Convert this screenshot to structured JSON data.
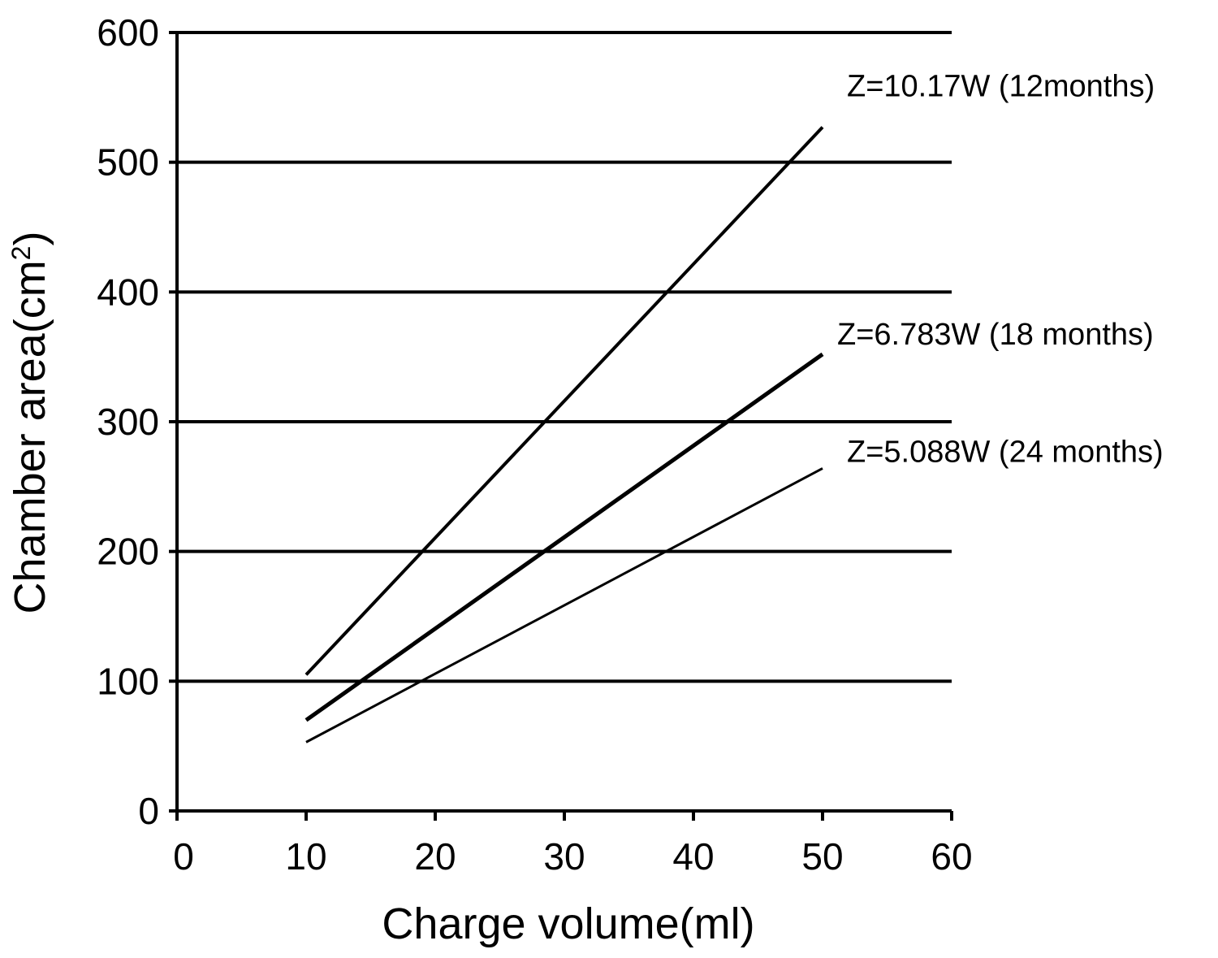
{
  "chart_data": {
    "type": "line",
    "xlabel": "Charge volume(ml)",
    "ylabel": "Chamber area(cm2)",
    "xlim": [
      0,
      60
    ],
    "ylim": [
      0,
      600
    ],
    "x_ticks": [
      0,
      10,
      20,
      30,
      40,
      50,
      60
    ],
    "y_ticks": [
      0,
      100,
      200,
      300,
      400,
      500,
      600
    ],
    "grid": "horizontal",
    "series": [
      {
        "name": "Z=10.17W (12months)",
        "x": [
          10,
          50
        ],
        "y": [
          105,
          527
        ]
      },
      {
        "name": "Z=6.783W (18 months)",
        "x": [
          10,
          50
        ],
        "y": [
          70,
          352
        ]
      },
      {
        "name": "Z=5.088W (24 months)",
        "x": [
          10,
          50
        ],
        "y": [
          53,
          264
        ]
      }
    ],
    "colors": {
      "lines": "#000000",
      "grid": "#000000"
    }
  }
}
